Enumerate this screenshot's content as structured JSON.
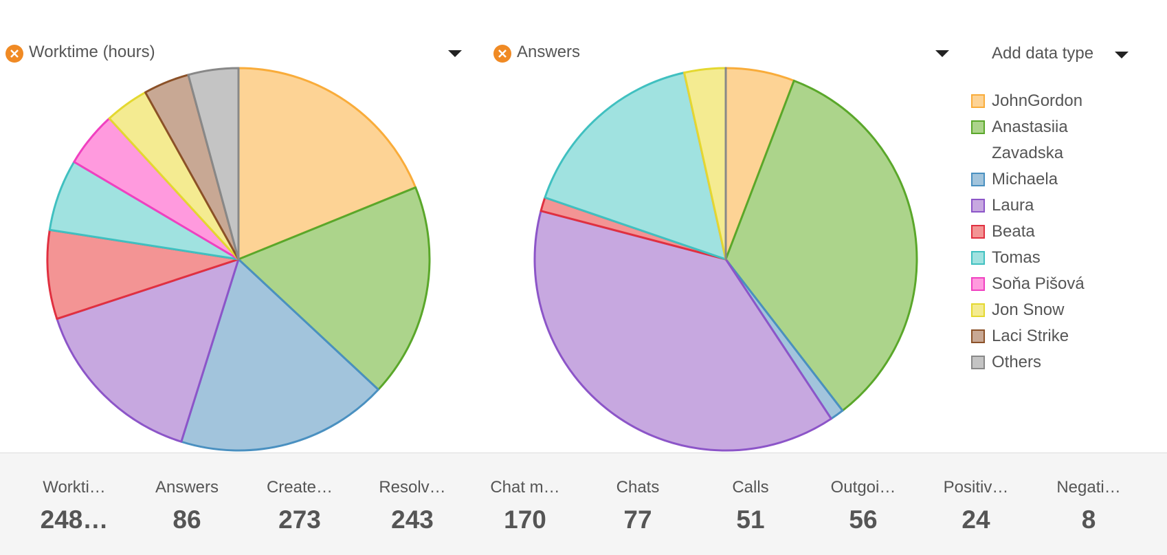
{
  "chart_data": [
    {
      "type": "pie",
      "title": "Worktime (hours)",
      "values": [
        46.8,
        44.8,
        44.4,
        37.5,
        18.6,
        15,
        11.6,
        9.2,
        9.6,
        10.5
      ]
    },
    {
      "type": "pie",
      "title": "Answers",
      "values": [
        5,
        29,
        1,
        33,
        1,
        14,
        0,
        3,
        0,
        0
      ]
    }
  ],
  "add_data_type": "Add data type",
  "legend": [
    {
      "name": "JohnGordon",
      "color": "#fdd395",
      "border": "#f9ac3a"
    },
    {
      "name": "Anastasiia Zavadska",
      "color": "#acd48b",
      "border": "#5aa72a"
    },
    {
      "name": "Michaela",
      "color": "#a2c4dc",
      "border": "#4a90c0"
    },
    {
      "name": "Laura",
      "color": "#c7a8e0",
      "border": "#8c55c8"
    },
    {
      "name": "Beata",
      "color": "#f39494",
      "border": "#e03040"
    },
    {
      "name": "Tomas",
      "color": "#a0e2e0",
      "border": "#40c0c0"
    },
    {
      "name": "Soňa Pišová",
      "color": "#ff9ade",
      "border": "#f040c0"
    },
    {
      "name": "Jon Snow",
      "color": "#f4eb91",
      "border": "#e4d830"
    },
    {
      "name": "Laci Strike",
      "color": "#c8a894",
      "border": "#8b5128"
    },
    {
      "name": "Others",
      "color": "#c4c4c4",
      "border": "#888888"
    }
  ],
  "stats": [
    {
      "label": "Workti…",
      "value": "248…"
    },
    {
      "label": "Answers",
      "value": 86
    },
    {
      "label": "Create…",
      "value": 273
    },
    {
      "label": "Resolv…",
      "value": 243
    },
    {
      "label": "Chat m…",
      "value": 170
    },
    {
      "label": "Chats",
      "value": 77
    },
    {
      "label": "Calls",
      "value": 51
    },
    {
      "label": "Outgoi…",
      "value": 56
    },
    {
      "label": "Positiv…",
      "value": 24
    },
    {
      "label": "Negati…",
      "value": 8
    }
  ]
}
